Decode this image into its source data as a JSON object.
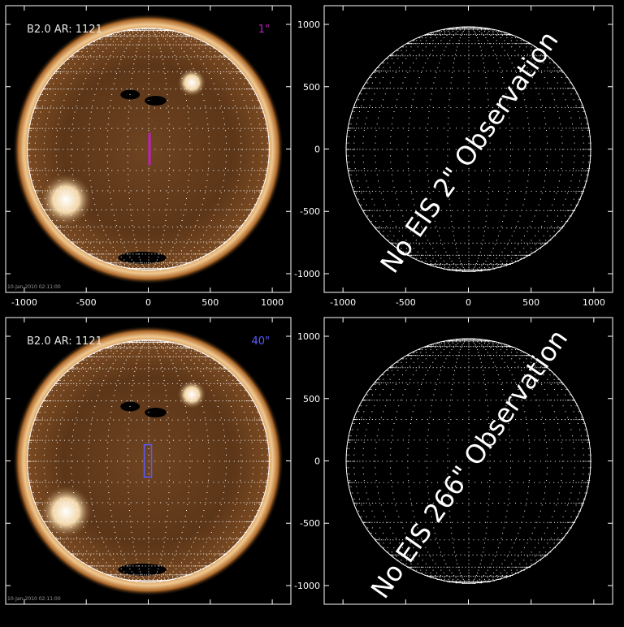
{
  "panels": [
    {
      "id": "top-left",
      "has_image": true,
      "label_left": "B2.0 AR: 1121",
      "label_right": "1\"",
      "label_right_color": "#c020c0",
      "footer_text": "10-Jan-2010 02:11:00",
      "overlay_text": "",
      "x_ticks": [
        "-1000",
        "-500",
        "0",
        "500",
        "1000"
      ],
      "y_ticks": []
    },
    {
      "id": "top-right",
      "has_image": false,
      "label_left": "",
      "label_right": "",
      "footer_text": "",
      "overlay_text": "No EIS 2\" Observation",
      "x_ticks": [
        "-1000",
        "-500",
        "0",
        "500",
        "1000"
      ],
      "y_ticks": [
        "1000",
        "500",
        "0",
        "-500",
        "-1000"
      ]
    },
    {
      "id": "bottom-left",
      "has_image": true,
      "label_left": "B2.0 AR: 1121",
      "label_right": "40\"",
      "label_right_color": "#5a5aff",
      "footer_text": "10-Jan-2010 02:11:00",
      "overlay_text": "",
      "x_ticks": [],
      "y_ticks": []
    },
    {
      "id": "bottom-right",
      "has_image": false,
      "label_left": "",
      "label_right": "",
      "footer_text": "",
      "overlay_text": "No EIS 266\" Observation",
      "x_ticks": [],
      "y_ticks": [
        "1000",
        "500",
        "0",
        "-500",
        "-1000"
      ]
    }
  ],
  "colors": {
    "background": "#000000",
    "axis": "#ffffff",
    "slit_magenta": "#c020c0",
    "box_blue": "#5a5aff",
    "sun_corona": "#b06a2a",
    "sun_disk": "#6b4220"
  }
}
